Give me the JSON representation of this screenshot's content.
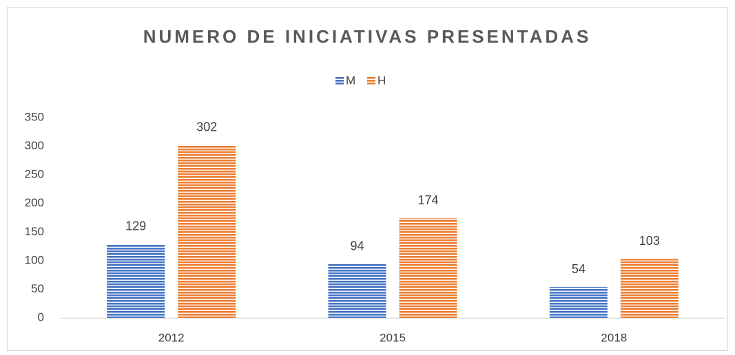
{
  "chart_data": {
    "type": "bar",
    "title": "NUMERO DE INICIATIVAS PRESENTADAS",
    "categories": [
      "2012",
      "2015",
      "2018"
    ],
    "series": [
      {
        "name": "M",
        "color": "#4472c4",
        "values": [
          129,
          94,
          54
        ]
      },
      {
        "name": "H",
        "color": "#ed7d31",
        "values": [
          302,
          174,
          103
        ]
      }
    ],
    "ylim": [
      0,
      350
    ],
    "yticks": [
      0,
      50,
      100,
      150,
      200,
      250,
      300,
      350
    ],
    "grid": false,
    "legend": "top",
    "pattern": "horizontal-stripes"
  }
}
